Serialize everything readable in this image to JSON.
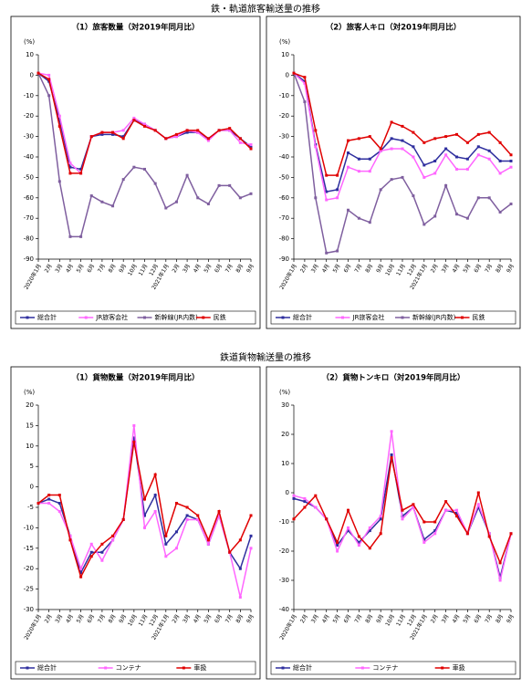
{
  "sections": [
    {
      "title": "鉄・軌道旅客輸送量の推移"
    },
    {
      "title": "鉄道貨物輸送量の推移"
    }
  ],
  "chart_data": [
    {
      "type": "line",
      "title": "（1）旅客数量（対2019年同月比）",
      "ylabel": "(%)",
      "categories": [
        "2020年1月",
        "2月",
        "3月",
        "4月",
        "5月",
        "6月",
        "7月",
        "8月",
        "9月",
        "10月",
        "11月",
        "12月",
        "2021年1月",
        "2月",
        "3月",
        "4月",
        "5月",
        "6月",
        "7月",
        "8月",
        "9月"
      ],
      "ylim": [
        -90,
        10
      ],
      "yticks": [
        10,
        0,
        -10,
        -20,
        -30,
        -40,
        -50,
        -60,
        -70,
        -80,
        -90
      ],
      "grid": false,
      "series": [
        {
          "name": "総合計",
          "color": "#2e2e9e",
          "values": [
            1,
            -3,
            -22,
            -45,
            -46,
            -30,
            -29,
            -29,
            -30,
            -22,
            -24,
            -27,
            -31,
            -30,
            -28,
            -28,
            -31,
            -27,
            -27,
            -31,
            -35
          ]
        },
        {
          "name": "JR旅客会社",
          "color": "#ff66ff",
          "values": [
            1,
            0,
            -20,
            -43,
            -48,
            -30,
            -28,
            -28,
            -27,
            -21,
            -24,
            -27,
            -31,
            -30,
            -27,
            -28,
            -32,
            -27,
            -27,
            -33,
            -34
          ]
        },
        {
          "name": "新幹線(JR内数)",
          "color": "#7f5f9f",
          "values": [
            1,
            -10,
            -52,
            -79,
            -79,
            -59,
            -62,
            -64,
            -51,
            -45,
            -46,
            -53,
            -65,
            -62,
            -49,
            -60,
            -63,
            -54,
            -54,
            -60,
            -58
          ]
        },
        {
          "name": "民鉄",
          "color": "#e00000",
          "values": [
            1,
            -2,
            -25,
            -48,
            -48,
            -30,
            -28,
            -28,
            -31,
            -22,
            -25,
            -27,
            -31,
            -29,
            -27,
            -27,
            -31,
            -27,
            -26,
            -31,
            -36
          ]
        }
      ]
    },
    {
      "type": "line",
      "title": "（2）旅客人キロ（対2019年同月比）",
      "ylabel": "(%)",
      "categories": [
        "2020年1月",
        "2月",
        "3月",
        "4月",
        "5月",
        "6月",
        "7月",
        "8月",
        "9月",
        "10月",
        "11月",
        "12月",
        "2021年1月",
        "2月",
        "3月",
        "4月",
        "5月",
        "6月",
        "7月",
        "8月",
        "9月"
      ],
      "ylim": [
        -90,
        10
      ],
      "yticks": [
        10,
        0,
        -10,
        -20,
        -30,
        -40,
        -50,
        -60,
        -70,
        -80,
        -90
      ],
      "grid": false,
      "series": [
        {
          "name": "総合計",
          "color": "#2e2e9e",
          "values": [
            1,
            -3,
            -34,
            -57,
            -56,
            -38,
            -41,
            -41,
            -37,
            -31,
            -32,
            -35,
            -44,
            -42,
            -36,
            -40,
            -41,
            -35,
            -37,
            -42,
            -42
          ]
        },
        {
          "name": "JR旅客会社",
          "color": "#ff66ff",
          "values": [
            1,
            -4,
            -35,
            -61,
            -60,
            -45,
            -47,
            -47,
            -37,
            -36,
            -36,
            -40,
            -50,
            -48,
            -39,
            -46,
            -46,
            -39,
            -41,
            -48,
            -45
          ]
        },
        {
          "name": "新幹線(JR内数)",
          "color": "#7f5f9f",
          "values": [
            1,
            -13,
            -60,
            -87,
            -86,
            -66,
            -70,
            -72,
            -56,
            -51,
            -50,
            -59,
            -73,
            -69,
            -54,
            -68,
            -70,
            -60,
            -60,
            -67,
            -63
          ]
        },
        {
          "name": "民鉄",
          "color": "#e00000",
          "values": [
            1,
            -1,
            -27,
            -49,
            -49,
            -32,
            -31,
            -30,
            -36,
            -23,
            -25,
            -28,
            -33,
            -31,
            -30,
            -29,
            -33,
            -29,
            -28,
            -33,
            -39
          ]
        }
      ]
    },
    {
      "type": "line",
      "title": "（1）貨物数量（対2019年同月比）",
      "ylabel": "(%)",
      "categories": [
        "2020年1月",
        "2月",
        "3月",
        "4月",
        "5月",
        "6月",
        "7月",
        "8月",
        "9月",
        "10月",
        "11月",
        "12月",
        "2021年1月",
        "2月",
        "3月",
        "4月",
        "5月",
        "6月",
        "7月",
        "8月",
        "9月"
      ],
      "ylim": [
        -30,
        20
      ],
      "yticks": [
        20,
        15,
        10,
        5,
        0,
        -5,
        -10,
        -15,
        -20,
        -25,
        -30
      ],
      "grid": false,
      "series": [
        {
          "name": "総合計",
          "color": "#2e2e9e",
          "values": [
            -4,
            -3,
            -4,
            -12,
            -21,
            -16,
            -16,
            -13,
            -8,
            12,
            -7,
            -2,
            -14,
            -11,
            -7,
            -8,
            -14,
            -7,
            -16,
            -20,
            -12
          ]
        },
        {
          "name": "コンテナ",
          "color": "#ff66ff",
          "values": [
            -4,
            -4,
            -6,
            -12,
            -20,
            -14,
            -18,
            -13,
            -8,
            15,
            -10,
            -6,
            -17,
            -15,
            -8,
            -8,
            -14,
            -7,
            -16,
            -27,
            -15
          ]
        },
        {
          "name": "車扱",
          "color": "#e00000",
          "values": [
            -4,
            -2,
            -2,
            -13,
            -22,
            -17,
            -14,
            -12,
            -8,
            11,
            -3,
            3,
            -12,
            -4,
            -5,
            -7,
            -13,
            -6,
            -16,
            -13,
            -7
          ]
        }
      ]
    },
    {
      "type": "line",
      "title": "（2）貨物トンキロ（対2019年同月比）",
      "ylabel": "(%)",
      "categories": [
        "2020年1月",
        "2月",
        "3月",
        "4月",
        "5月",
        "6月",
        "7月",
        "8月",
        "9月",
        "10月",
        "11月",
        "12月",
        "2021年1月",
        "2月",
        "3月",
        "4月",
        "5月",
        "6月",
        "7月",
        "8月",
        "9月"
      ],
      "ylim": [
        -40,
        30
      ],
      "yticks": [
        30,
        20,
        10,
        0,
        -10,
        -20,
        -30,
        -40
      ],
      "grid": false,
      "series": [
        {
          "name": "総合計",
          "color": "#2e2e9e",
          "values": [
            -2,
            -3,
            -5,
            -9,
            -18,
            -13,
            -17,
            -13,
            -9,
            13,
            -8,
            -5,
            -16,
            -13,
            -6,
            -7,
            -14,
            -5,
            -14,
            -29,
            -14
          ]
        },
        {
          "name": "コンテナ",
          "color": "#ff66ff",
          "values": [
            -1,
            -2,
            -5,
            -9,
            -20,
            -12,
            -18,
            -12,
            -8,
            21,
            -9,
            -5,
            -17,
            -14,
            -6,
            -6,
            -14,
            -4,
            -14,
            -30,
            -14
          ]
        },
        {
          "name": "車扱",
          "color": "#e00000",
          "values": [
            -9,
            -5,
            -1,
            -9,
            -17,
            -6,
            -15,
            -19,
            -14,
            12,
            -6,
            -4,
            -10,
            -10,
            -3,
            -8,
            -14,
            0,
            -15,
            -24,
            -14
          ]
        }
      ]
    }
  ]
}
